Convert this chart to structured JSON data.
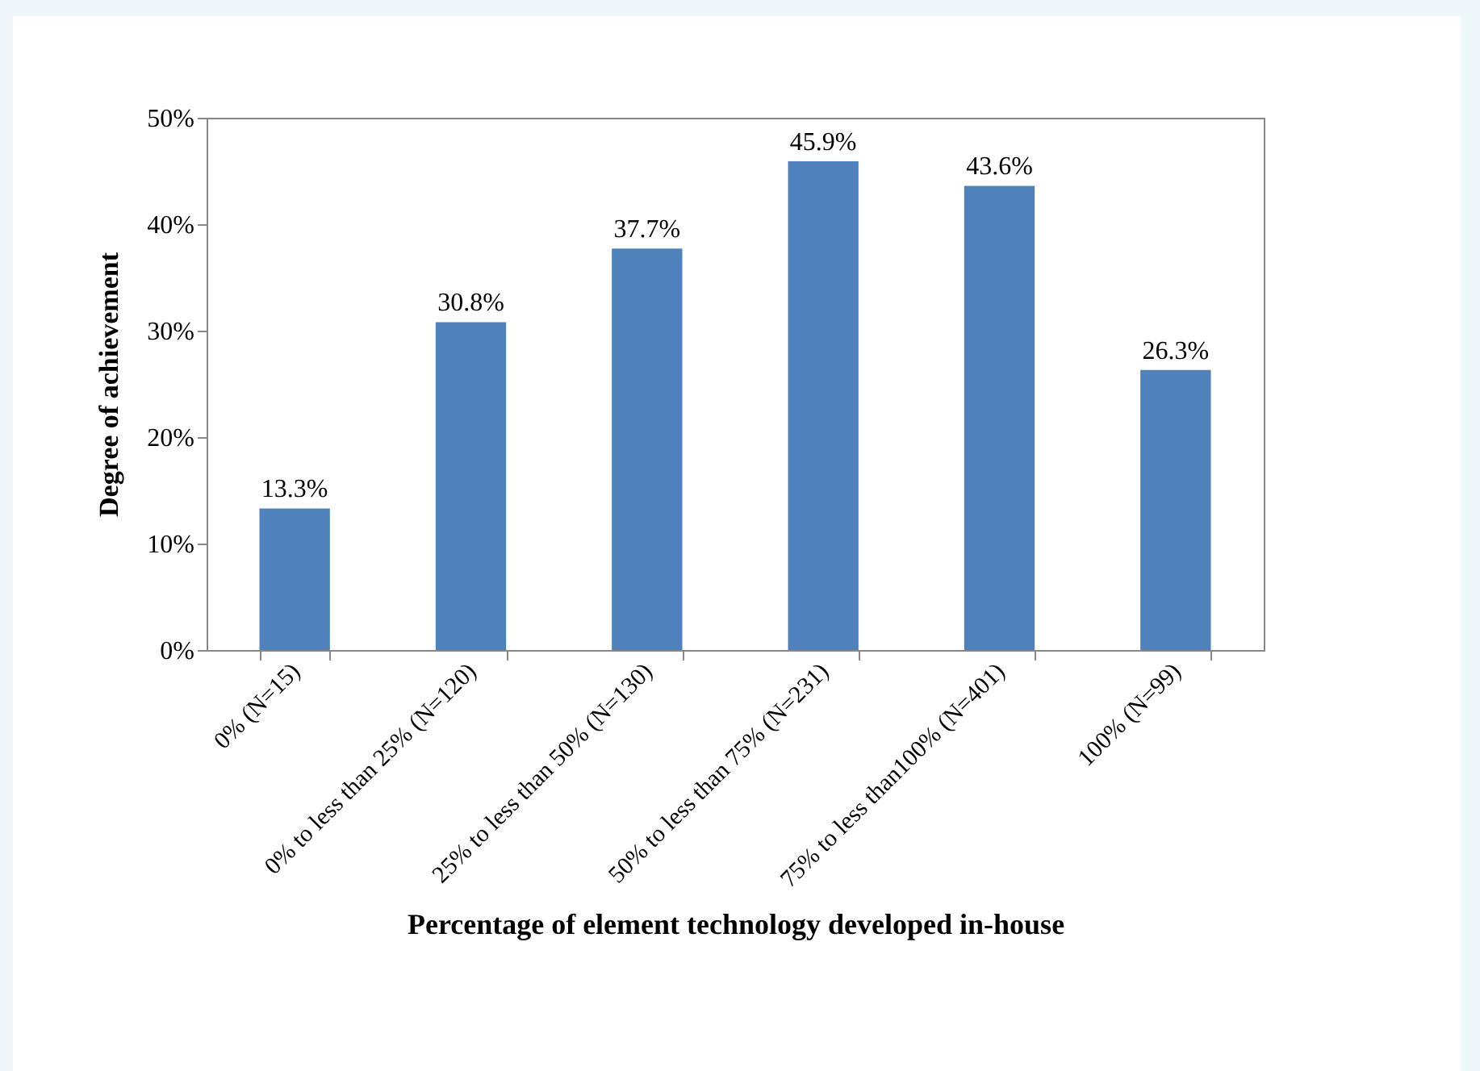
{
  "chart_data": {
    "type": "bar",
    "xlabel": "Percentage of  element technology developed in-house",
    "ylabel": "Degree of  achievement",
    "categories": [
      "0% (N=15)",
      "0% to less than 25% (N=120)",
      "25% to less than 50% (N=130)",
      "50% to less than 75% (N=231)",
      "75% to less than100% (N=401)",
      "100% (N=99)"
    ],
    "values": [
      13.3,
      30.8,
      37.7,
      45.9,
      43.6,
      26.3
    ],
    "value_labels": [
      "13.3%",
      "30.8%",
      "37.7%",
      "45.9%",
      "43.6%",
      "26.3%"
    ],
    "color": "#4f81bd",
    "ylim": [
      0,
      50
    ],
    "yticks": [
      {
        "value": 0,
        "label": "0%"
      },
      {
        "value": 10,
        "label": "10%"
      },
      {
        "value": 20,
        "label": "20%"
      },
      {
        "value": 30,
        "label": "30%"
      },
      {
        "value": 40,
        "label": "40%"
      },
      {
        "value": 50,
        "label": "50%"
      }
    ],
    "grid": false
  }
}
